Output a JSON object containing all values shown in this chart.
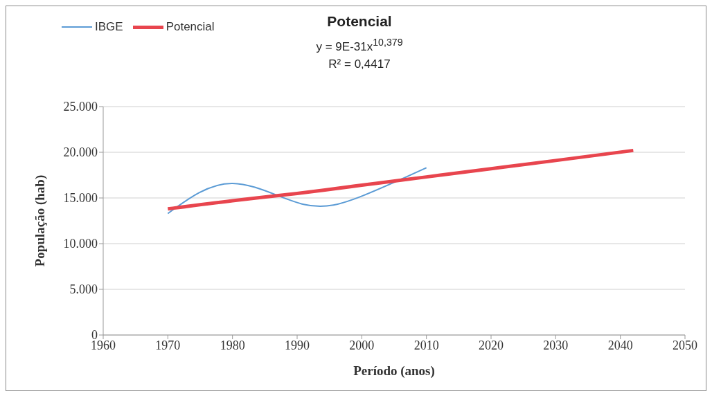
{
  "chart_data": {
    "type": "line",
    "title": "Potencial",
    "annotations": [
      "y = 9E-31x$^{10,379}$",
      "R² = 0,4417"
    ],
    "xlabel": "Período (anos)",
    "ylabel": "População (hab)",
    "series": [
      {
        "name": "IBGE",
        "color": "#5b9bd5",
        "x": [
          1970,
          1980,
          1991,
          2000,
          2010
        ],
        "values": [
          13300,
          16600,
          14300,
          15200,
          18300
        ]
      },
      {
        "name": "Potencial",
        "color": "#e8454e",
        "x": [
          1970,
          1980,
          1990,
          2000,
          2010,
          2020,
          2030,
          2042
        ],
        "values": [
          13800,
          14700,
          15500,
          16400,
          17300,
          18200,
          19100,
          20200
        ]
      }
    ],
    "xlim": [
      1960,
      2050
    ],
    "xticks": [
      1960,
      1970,
      1980,
      1990,
      2000,
      2010,
      2020,
      2030,
      2040,
      2050
    ],
    "ylim": [
      0,
      25000
    ],
    "yticks": [
      0,
      {
        "value": 5000,
        "label": "5.000"
      },
      {
        "value": 10000,
        "label": "10.000"
      },
      {
        "value": 15000,
        "label": "15.000"
      },
      {
        "value": 20000,
        "label": "20.000"
      },
      {
        "value": 25000,
        "label": "25.000"
      }
    ],
    "grid": "y",
    "legend": "top left",
    "marker": "none",
    "line_style": "solid"
  }
}
